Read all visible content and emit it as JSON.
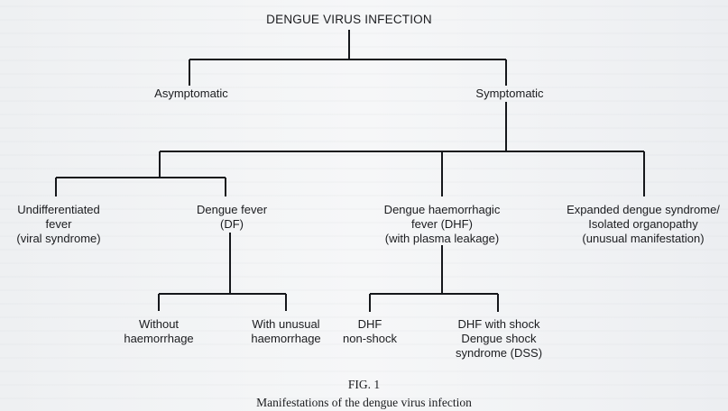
{
  "diagram": {
    "root": "DENGUE VIRUS INFECTION",
    "level1": {
      "asymptomatic": "Asymptomatic",
      "symptomatic": "Symptomatic"
    },
    "level2": {
      "undifferentiated": [
        "Undifferentiated",
        "fever",
        "(viral syndrome)"
      ],
      "dengue_fever": [
        "Dengue fever",
        "(DF)"
      ],
      "dhf": [
        "Dengue haemorrhagic",
        "fever (DHF)",
        "(with plasma leakage)"
      ],
      "expanded": [
        "Expanded dengue syndrome/",
        "Isolated organopathy",
        "(unusual manifestation)"
      ]
    },
    "level3": {
      "without_haemorrhage": [
        "Without",
        "haemorrhage"
      ],
      "with_unusual_haemorrhage": [
        "With unusual",
        "haemorrhage"
      ],
      "dhf_non_shock": [
        "DHF",
        "non-shock"
      ],
      "dhf_with_shock": [
        "DHF with shock",
        "Dengue shock",
        "syndrome (DSS)"
      ]
    }
  },
  "figure": {
    "label": "FIG. 1",
    "title": "Manifestations of the dengue virus infection"
  }
}
